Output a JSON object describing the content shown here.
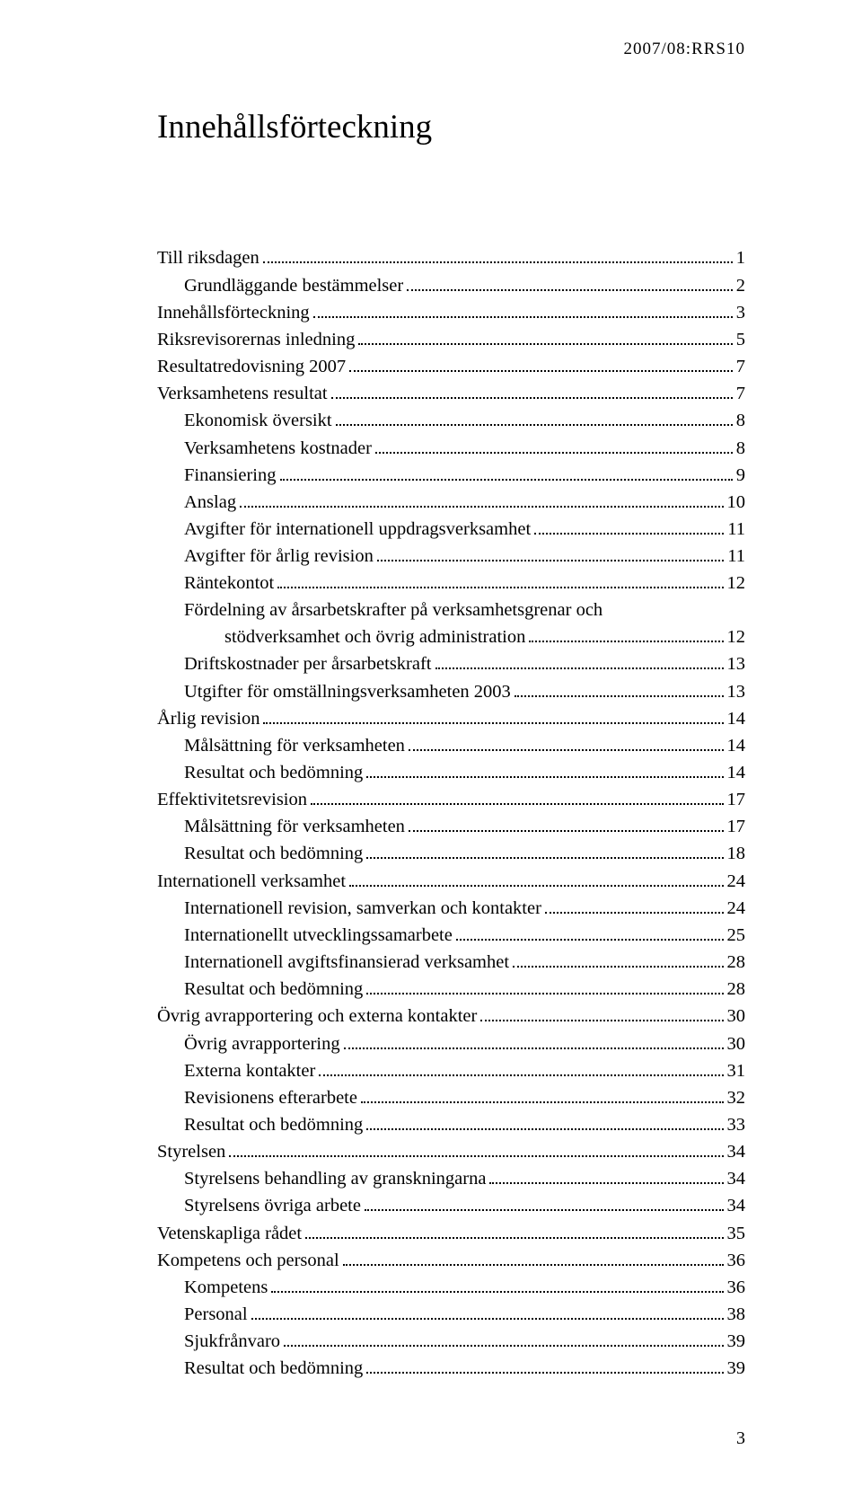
{
  "header_code": "2007/08:RRS10",
  "title": "Innehållsförteckning",
  "page_number": "3",
  "toc": [
    {
      "label": "Till riksdagen",
      "page": "1",
      "indent": 0
    },
    {
      "label": "Grundläggande bestämmelser",
      "page": "2",
      "indent": 1
    },
    {
      "label": "Innehållsförteckning",
      "page": "3",
      "indent": 0
    },
    {
      "label": "Riksrevisorernas inledning",
      "page": "5",
      "indent": 0
    },
    {
      "label": "Resultatredovisning 2007",
      "page": "7",
      "indent": 0
    },
    {
      "label": "Verksamhetens resultat",
      "page": "7",
      "indent": 0
    },
    {
      "label": "Ekonomisk översikt",
      "page": "8",
      "indent": 1
    },
    {
      "label": "Verksamhetens kostnader",
      "page": "8",
      "indent": 1
    },
    {
      "label": "Finansiering",
      "page": "9",
      "indent": 1
    },
    {
      "label": "Anslag",
      "page": "10",
      "indent": 1
    },
    {
      "label": "Avgifter för internationell uppdragsverksamhet",
      "page": "11",
      "indent": 1
    },
    {
      "label": "Avgifter för årlig revision",
      "page": "11",
      "indent": 1
    },
    {
      "label": "Räntekontot",
      "page": "12",
      "indent": 1
    },
    {
      "label": "Fördelning av årsarbetskrafter på verksamhetsgrenar och",
      "page": "",
      "indent": 1,
      "no_dots": true
    },
    {
      "label": "stödverksamhet och övrig administration",
      "page": "12",
      "indent": 2
    },
    {
      "label": "Driftskostnader per årsarbetskraft",
      "page": "13",
      "indent": 1
    },
    {
      "label": "Utgifter för omställningsverksamheten 2003",
      "page": "13",
      "indent": 1
    },
    {
      "label": "Årlig revision",
      "page": "14",
      "indent": 0
    },
    {
      "label": "Målsättning för verksamheten",
      "page": "14",
      "indent": 1
    },
    {
      "label": "Resultat och bedömning",
      "page": "14",
      "indent": 1
    },
    {
      "label": "Effektivitetsrevision",
      "page": "17",
      "indent": 0
    },
    {
      "label": "Målsättning för verksamheten",
      "page": "17",
      "indent": 1
    },
    {
      "label": "Resultat och bedömning",
      "page": "18",
      "indent": 1
    },
    {
      "label": "Internationell verksamhet",
      "page": "24",
      "indent": 0
    },
    {
      "label": "Internationell revision, samverkan och kontakter",
      "page": "24",
      "indent": 1
    },
    {
      "label": "Internationellt utvecklingssamarbete",
      "page": "25",
      "indent": 1
    },
    {
      "label": "Internationell avgiftsfinansierad verksamhet",
      "page": "28",
      "indent": 1
    },
    {
      "label": "Resultat och bedömning",
      "page": "28",
      "indent": 1
    },
    {
      "label": "Övrig avrapportering och externa kontakter",
      "page": "30",
      "indent": 0
    },
    {
      "label": "Övrig avrapportering",
      "page": "30",
      "indent": 1
    },
    {
      "label": "Externa kontakter",
      "page": "31",
      "indent": 1
    },
    {
      "label": "Revisionens efterarbete",
      "page": "32",
      "indent": 1
    },
    {
      "label": "Resultat och bedömning",
      "page": "33",
      "indent": 1
    },
    {
      "label": "Styrelsen",
      "page": "34",
      "indent": 0
    },
    {
      "label": "Styrelsens behandling av granskningarna",
      "page": "34",
      "indent": 1
    },
    {
      "label": "Styrelsens övriga arbete",
      "page": "34",
      "indent": 1
    },
    {
      "label": "Vetenskapliga rådet",
      "page": "35",
      "indent": 0
    },
    {
      "label": "Kompetens och personal",
      "page": "36",
      "indent": 0
    },
    {
      "label": "Kompetens",
      "page": "36",
      "indent": 1
    },
    {
      "label": "Personal",
      "page": "38",
      "indent": 1
    },
    {
      "label": "Sjukfrånvaro",
      "page": "39",
      "indent": 1
    },
    {
      "label": "Resultat och bedömning",
      "page": "39",
      "indent": 1
    }
  ]
}
